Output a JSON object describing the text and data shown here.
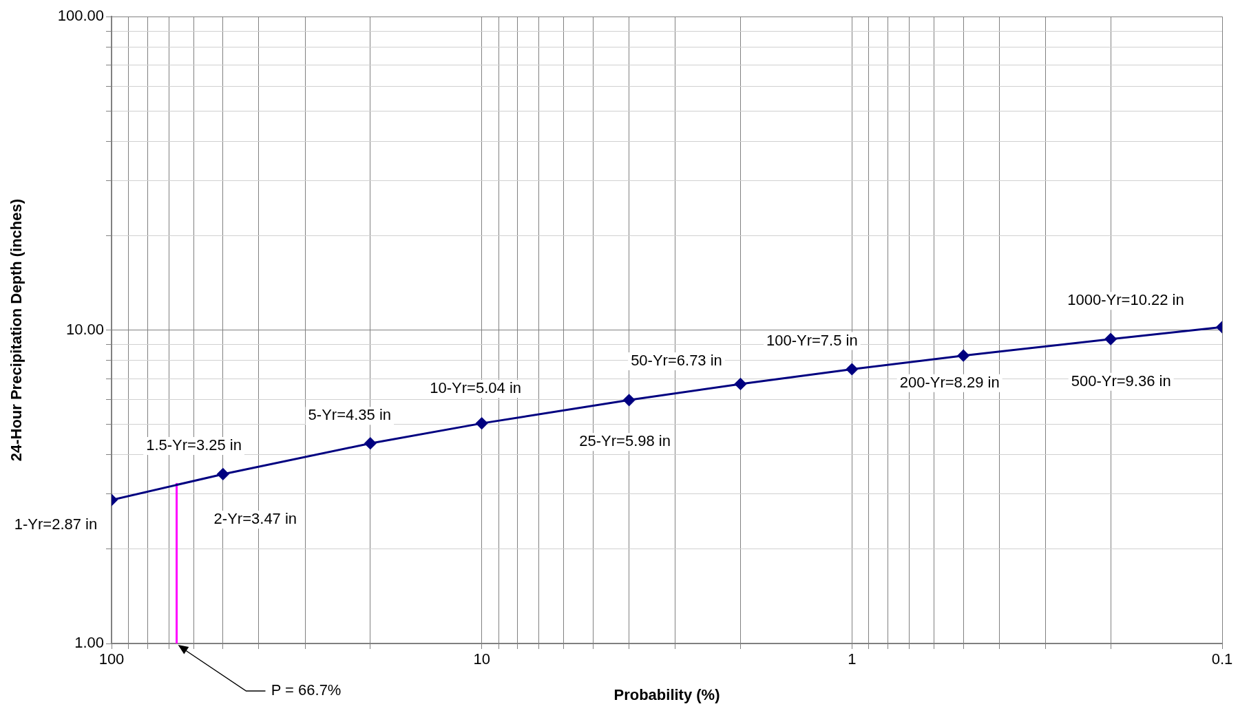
{
  "chart_data": {
    "type": "line",
    "xlabel": "Probability (%)",
    "ylabel": "24-Hour Precipitation Depth (inches)",
    "log": "xy",
    "grid": true,
    "legend": false,
    "marker": "diamond",
    "line_style": "solid",
    "xlim": [
      100,
      0.1
    ],
    "ylim": [
      1,
      100
    ],
    "xticks": [
      100,
      {
        "value": 90,
        "label": null
      },
      {
        "value": 80,
        "label": null
      },
      {
        "value": 70,
        "label": null
      },
      {
        "value": 60,
        "label": null
      },
      {
        "value": 50,
        "label": null
      },
      {
        "value": 40,
        "label": null
      },
      {
        "value": 30,
        "label": null
      },
      {
        "value": 20,
        "label": null
      },
      10,
      {
        "value": 9,
        "label": null
      },
      {
        "value": 8,
        "label": null
      },
      {
        "value": 7,
        "label": null
      },
      {
        "value": 6,
        "label": null
      },
      {
        "value": 5,
        "label": null
      },
      {
        "value": 4,
        "label": null
      },
      {
        "value": 3,
        "label": null
      },
      {
        "value": 2,
        "label": null
      },
      1,
      {
        "value": 0.9,
        "label": null
      },
      {
        "value": 0.8,
        "label": null
      },
      {
        "value": 0.7,
        "label": null
      },
      {
        "value": 0.6,
        "label": null
      },
      {
        "value": 0.5,
        "label": null
      },
      {
        "value": 0.4,
        "label": null
      },
      {
        "value": 0.3,
        "label": null
      },
      {
        "value": 0.2,
        "label": null
      },
      0.1
    ],
    "yticks": [
      {
        "value": 1,
        "label": "1.00"
      },
      {
        "value": 2,
        "label": null
      },
      {
        "value": 3,
        "label": null
      },
      {
        "value": 4,
        "label": null
      },
      {
        "value": 5,
        "label": null
      },
      {
        "value": 6,
        "label": null
      },
      {
        "value": 7,
        "label": null
      },
      {
        "value": 8,
        "label": null
      },
      {
        "value": 9,
        "label": null
      },
      {
        "value": 10,
        "label": "10.00"
      },
      {
        "value": 20,
        "label": null
      },
      {
        "value": 30,
        "label": null
      },
      {
        "value": 40,
        "label": null
      },
      {
        "value": 50,
        "label": null
      },
      {
        "value": 60,
        "label": null
      },
      {
        "value": 70,
        "label": null
      },
      {
        "value": 80,
        "label": null
      },
      {
        "value": 90,
        "label": null
      },
      {
        "value": 100,
        "label": "100.00"
      }
    ],
    "series": [
      {
        "color": "#000080",
        "x": [
          100,
          50,
          20,
          10,
          4,
          2,
          1,
          0.5,
          0.2,
          0.1
        ],
        "values": [
          2.87,
          3.47,
          4.35,
          5.04,
          5.98,
          6.73,
          7.5,
          8.29,
          9.36,
          10.22
        ]
      },
      {
        "type": "line",
        "color": "#ff00ff",
        "marker": "none",
        "x": [
          66.7,
          66.7
        ],
        "values": [
          1,
          3.25
        ]
      }
    ],
    "annotations": [
      {
        "text": "1-Yr=2.87 in",
        "x": 100,
        "y": 2.87
      },
      {
        "text": "1.5-Yr=3.25 in",
        "x": 66.7,
        "y": 3.25
      },
      {
        "text": "2-Yr=3.47 in",
        "x": 50,
        "y": 3.47
      },
      {
        "text": "5-Yr=4.35 in",
        "x": 20,
        "y": 4.35
      },
      {
        "text": "10-Yr=5.04 in",
        "x": 10,
        "y": 5.04
      },
      {
        "text": "25-Yr=5.98 in",
        "x": 4,
        "y": 5.98
      },
      {
        "text": "50-Yr=6.73 in",
        "x": 2,
        "y": 6.73
      },
      {
        "text": "100-Yr=7.5 in",
        "x": 1,
        "y": 7.5
      },
      {
        "text": "200-Yr=8.29 in",
        "x": 0.5,
        "y": 8.29
      },
      {
        "text": "500-Yr=9.36 in",
        "x": 0.2,
        "y": 9.36
      },
      {
        "text": "1000-Yr=10.22 in",
        "x": 0.1,
        "y": 10.22
      },
      {
        "text": "P = 66.7%",
        "x": 66.7,
        "y": 1
      }
    ]
  }
}
